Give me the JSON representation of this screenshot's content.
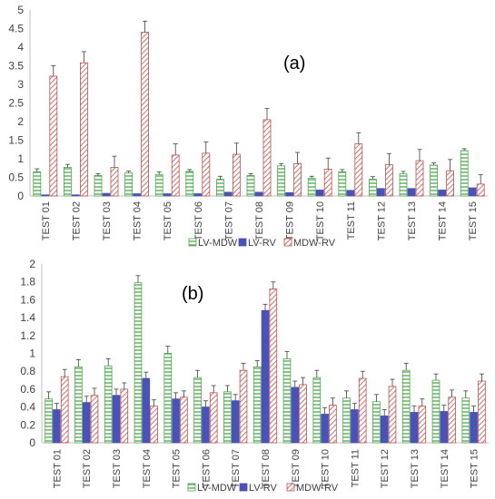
{
  "colors": {
    "lv_mdw": "#4ea84e",
    "lv_rv": "#4a52b8",
    "mdw_rv": "#c0504d",
    "axis": "#bfbfbf",
    "text": "#404040",
    "error_bar": "#404040"
  },
  "chart_data": [
    {
      "type": "bar",
      "annotation": "(a)",
      "categories": [
        "TEST 01",
        "TEST 02",
        "TEST 03",
        "TEST 04",
        "TEST 05",
        "TEST 06",
        "TEST 07",
        "TEST 08",
        "TEST 09",
        "TEST 10",
        "TEST 11",
        "TEST 12",
        "TEST 13",
        "TEST 14",
        "TEST 15"
      ],
      "series": [
        {
          "name": "LV-MDW",
          "values": [
            0.65,
            0.77,
            0.55,
            0.62,
            0.58,
            0.66,
            0.45,
            0.55,
            0.81,
            0.48,
            0.65,
            0.45,
            0.6,
            0.83,
            1.22
          ],
          "errors": [
            0.08,
            0.08,
            0.05,
            0.05,
            0.07,
            0.05,
            0.08,
            0.05,
            0.06,
            0.05,
            0.06,
            0.07,
            0.06,
            0.06,
            0.05
          ]
        },
        {
          "name": "LV-RV",
          "values": [
            0.03,
            0.03,
            0.07,
            0.06,
            0.06,
            0.06,
            0.1,
            0.1,
            0.09,
            0.16,
            0.15,
            0.2,
            0.2,
            0.16,
            0.22
          ],
          "errors": [
            0,
            0,
            0,
            0,
            0,
            0,
            0,
            0,
            0,
            0,
            0,
            0,
            0,
            0,
            0
          ]
        },
        {
          "name": "MDW-RV",
          "values": [
            3.22,
            3.58,
            0.77,
            4.4,
            1.1,
            1.15,
            1.12,
            2.05,
            0.87,
            0.72,
            1.4,
            0.84,
            0.95,
            0.68,
            0.32
          ],
          "errors": [
            0.28,
            0.3,
            0.3,
            0.3,
            0.3,
            0.3,
            0.3,
            0.3,
            0.3,
            0.3,
            0.3,
            0.3,
            0.3,
            0.3,
            0.25
          ]
        }
      ],
      "yticks": [
        "0",
        "0.5",
        "1",
        "1.5",
        "2",
        "2.5",
        "3",
        "3.5",
        "4",
        "4.5",
        "5"
      ],
      "ylim": [
        0,
        5
      ],
      "legend": "bottom"
    },
    {
      "type": "bar",
      "annotation": "(b)",
      "categories": [
        "TEST 01",
        "TEST 02",
        "TEST 03",
        "TEST 04",
        "TEST 05",
        "TEST 06",
        "TEST 07",
        "TEST 08",
        "TEST 09",
        "TEST 10",
        "TEST 11",
        "TEST 12",
        "TEST 13",
        "TEST 14",
        "TEST 15"
      ],
      "series": [
        {
          "name": "LV-MDW",
          "values": [
            0.49,
            0.85,
            0.86,
            1.79,
            1.0,
            0.73,
            0.57,
            0.85,
            0.94,
            0.73,
            0.5,
            0.46,
            0.81,
            0.7,
            0.5
          ],
          "errors": [
            0.08,
            0.08,
            0.08,
            0.08,
            0.08,
            0.08,
            0.07,
            0.07,
            0.08,
            0.08,
            0.08,
            0.08,
            0.08,
            0.07,
            0.08
          ]
        },
        {
          "name": "LV-RV",
          "values": [
            0.37,
            0.45,
            0.53,
            0.72,
            0.49,
            0.4,
            0.47,
            1.48,
            0.62,
            0.32,
            0.37,
            0.3,
            0.34,
            0.35,
            0.34
          ],
          "errors": [
            0.07,
            0.07,
            0.07,
            0.07,
            0.07,
            0.07,
            0.07,
            0.07,
            0.07,
            0.07,
            0.07,
            0.07,
            0.07,
            0.07,
            0.07
          ]
        },
        {
          "name": "MDW-RV",
          "values": [
            0.74,
            0.53,
            0.6,
            0.41,
            0.51,
            0.56,
            0.81,
            1.72,
            0.65,
            0.42,
            0.72,
            0.63,
            0.41,
            0.51,
            0.69
          ],
          "errors": [
            0.08,
            0.08,
            0.07,
            0.07,
            0.07,
            0.08,
            0.08,
            0.08,
            0.08,
            0.08,
            0.08,
            0.08,
            0.08,
            0.08,
            0.08
          ]
        }
      ],
      "yticks": [
        "0",
        "0.2",
        "0.4",
        "0.6",
        "0.8",
        "1",
        "1.2",
        "1.4",
        "1.6",
        "1.8",
        "2"
      ],
      "ylim": [
        0,
        2
      ],
      "legend": "bottom"
    }
  ]
}
